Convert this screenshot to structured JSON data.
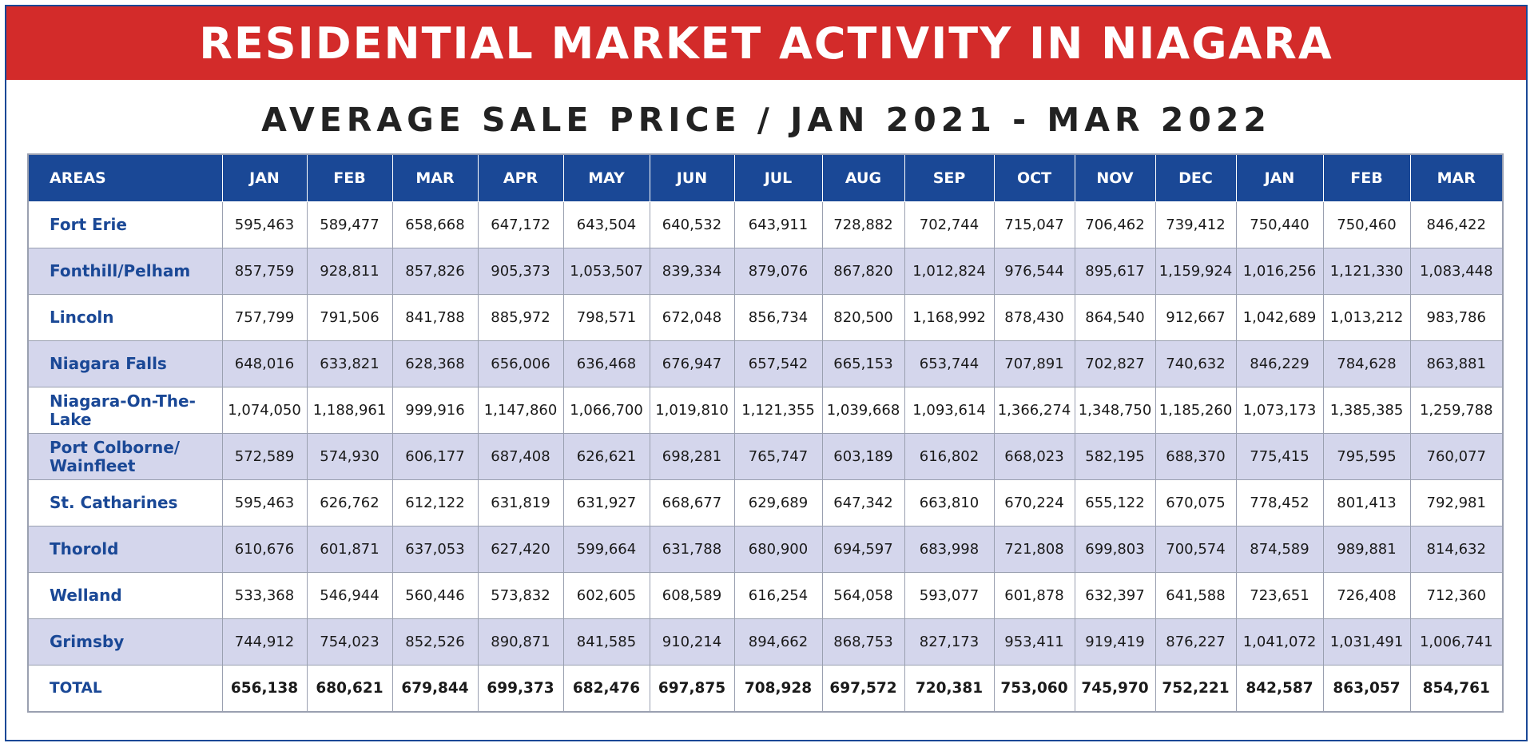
{
  "title": "RESIDENTIAL MARKET ACTIVITY IN NIAGARA",
  "subtitle": "AVERAGE SALE PRICE / JAN 2021 - MAR 2022",
  "colors": {
    "header_bg": "#1a4896",
    "banner_bg": "#d32b2a",
    "shade_row": "#d4d6ec",
    "area_text": "#1a4896"
  },
  "chart_data": {
    "type": "table",
    "columns": [
      "AREAS",
      "JAN",
      "FEB",
      "MAR",
      "APR",
      "MAY",
      "JUN",
      "JUL",
      "AUG",
      "SEP",
      "OCT",
      "NOV",
      "DEC",
      "JAN",
      "FEB",
      "MAR"
    ],
    "rows": [
      {
        "area": "Fort Erie",
        "values": [
          "595,463",
          "589,477",
          "658,668",
          "647,172",
          "643,504",
          "640,532",
          "643,911",
          "728,882",
          "702,744",
          "715,047",
          "706,462",
          "739,412",
          "750,440",
          "750,460",
          "846,422"
        ]
      },
      {
        "area": "Fonthill/Pelham",
        "values": [
          "857,759",
          "928,811",
          "857,826",
          "905,373",
          "1,053,507",
          "839,334",
          "879,076",
          "867,820",
          "1,012,824",
          "976,544",
          "895,617",
          "1,159,924",
          "1,016,256",
          "1,121,330",
          "1,083,448"
        ]
      },
      {
        "area": "Lincoln",
        "values": [
          "757,799",
          "791,506",
          "841,788",
          "885,972",
          "798,571",
          "672,048",
          "856,734",
          "820,500",
          "1,168,992",
          "878,430",
          "864,540",
          "912,667",
          "1,042,689",
          "1,013,212",
          "983,786"
        ]
      },
      {
        "area": "Niagara Falls",
        "values": [
          "648,016",
          "633,821",
          "628,368",
          "656,006",
          "636,468",
          "676,947",
          "657,542",
          "665,153",
          "653,744",
          "707,891",
          "702,827",
          "740,632",
          "846,229",
          "784,628",
          "863,881"
        ]
      },
      {
        "area": "Niagara-On-The-Lake",
        "values": [
          "1,074,050",
          "1,188,961",
          "999,916",
          "1,147,860",
          "1,066,700",
          "1,019,810",
          "1,121,355",
          "1,039,668",
          "1,093,614",
          "1,366,274",
          "1,348,750",
          "1,185,260",
          "1,073,173",
          "1,385,385",
          "1,259,788"
        ]
      },
      {
        "area": "Port Colborne/ Wainfleet",
        "values": [
          "572,589",
          "574,930",
          "606,177",
          "687,408",
          "626,621",
          "698,281",
          "765,747",
          "603,189",
          "616,802",
          "668,023",
          "582,195",
          "688,370",
          "775,415",
          "795,595",
          "760,077"
        ]
      },
      {
        "area": "St. Catharines",
        "values": [
          "595,463",
          "626,762",
          "612,122",
          "631,819",
          "631,927",
          "668,677",
          "629,689",
          "647,342",
          "663,810",
          "670,224",
          "655,122",
          "670,075",
          "778,452",
          "801,413",
          "792,981"
        ]
      },
      {
        "area": "Thorold",
        "values": [
          "610,676",
          "601,871",
          "637,053",
          "627,420",
          "599,664",
          "631,788",
          "680,900",
          "694,597",
          "683,998",
          "721,808",
          "699,803",
          "700,574",
          "874,589",
          "989,881",
          "814,632"
        ]
      },
      {
        "area": "Welland",
        "values": [
          "533,368",
          "546,944",
          "560,446",
          "573,832",
          "602,605",
          "608,589",
          "616,254",
          "564,058",
          "593,077",
          "601,878",
          "632,397",
          "641,588",
          "723,651",
          "726,408",
          "712,360"
        ]
      },
      {
        "area": "Grimsby",
        "values": [
          "744,912",
          "754,023",
          "852,526",
          "890,871",
          "841,585",
          "910,214",
          "894,662",
          "868,753",
          "827,173",
          "953,411",
          "919,419",
          "876,227",
          "1,041,072",
          "1,031,491",
          "1,006,741"
        ]
      },
      {
        "area": "TOTAL",
        "values": [
          "656,138",
          "680,621",
          "679,844",
          "699,373",
          "682,476",
          "697,875",
          "708,928",
          "697,572",
          "720,381",
          "753,060",
          "745,970",
          "752,221",
          "842,587",
          "863,057",
          "854,761"
        ]
      }
    ]
  }
}
